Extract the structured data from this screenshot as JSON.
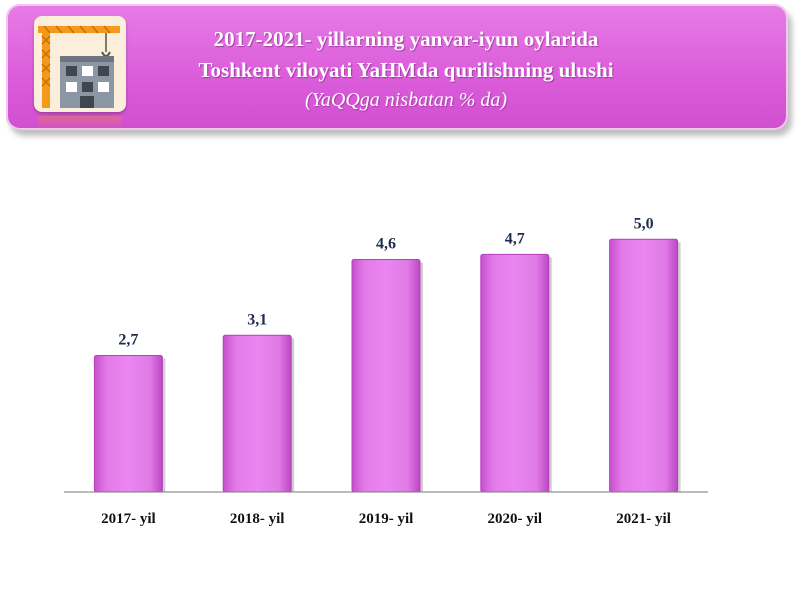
{
  "header": {
    "title_line1": "2017-2021- yillarning yanvar-iyun oylarida",
    "title_line2": "Toshkent viloyati YaHMda qurilishning ulushi",
    "subtitle": "(YaQQga nisbatan % da)",
    "icon": "construction-crane-building-icon"
  },
  "colors": {
    "banner": "#dc5edb",
    "bar_fill": "#e070e6",
    "bar_edge": "#b640bd",
    "text_dark": "#1f2d4d"
  },
  "chart_data": {
    "type": "bar",
    "categories": [
      "2017- yil",
      "2018- yil",
      "2019- yil",
      "2020- yil",
      "2021- yil"
    ],
    "values": [
      2.7,
      3.1,
      4.6,
      4.7,
      5.0
    ],
    "value_labels": [
      "2,7",
      "3,1",
      "4,6",
      "4,7",
      "5,0"
    ],
    "ylim": [
      0,
      5.5
    ],
    "grid": false,
    "legend": "none"
  }
}
